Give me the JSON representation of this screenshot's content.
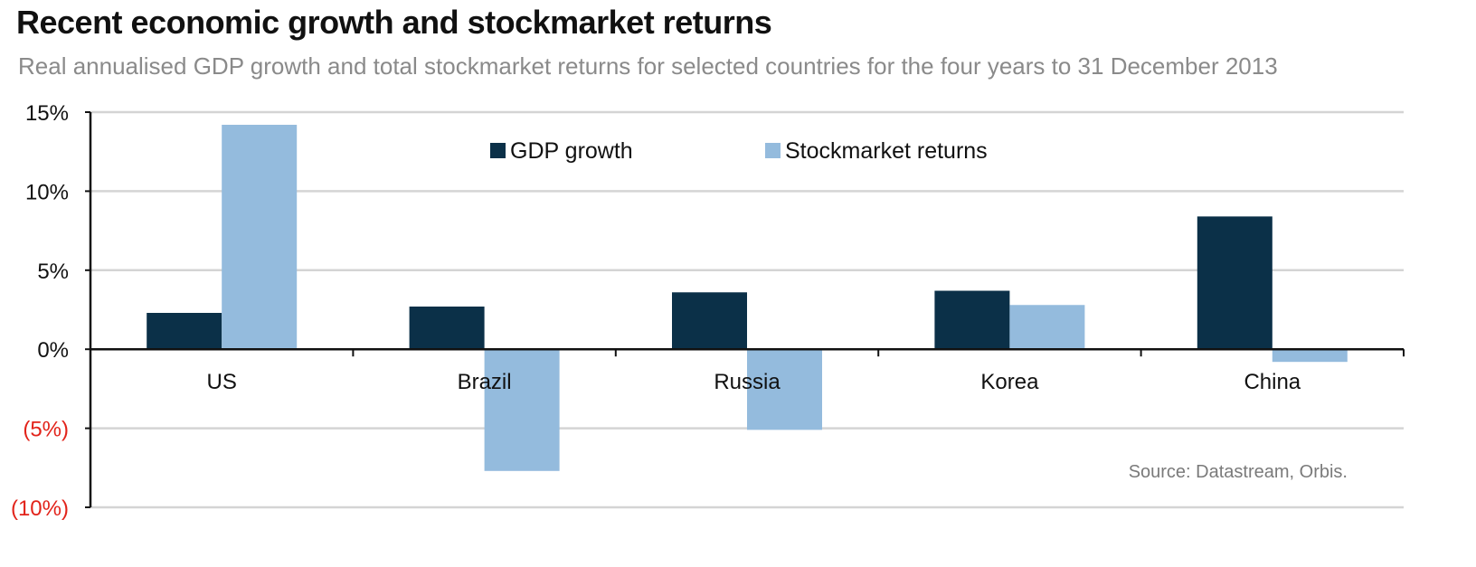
{
  "header": {
    "title": "Recent economic growth and stockmarket returns",
    "subtitle": "Real annualised GDP growth and total stockmarket returns for selected countries for the four years to 31 December 2013"
  },
  "source_note": "Source: Datastream, Orbis.",
  "colors": {
    "gdp": "#0b3048",
    "stock": "#94bbdd",
    "gridline": "#d4d4d4",
    "negative_tick": "#e2231a",
    "positive_tick": "#111111"
  },
  "chart_data": {
    "type": "bar",
    "title": "Recent economic growth and stockmarket returns",
    "subtitle": "Real annualised GDP growth and total stockmarket returns for selected countries for the four years to 31 December 2013",
    "categories": [
      "US",
      "Brazil",
      "Russia",
      "Korea",
      "China"
    ],
    "series": [
      {
        "name": "GDP growth",
        "values": [
          2.3,
          2.7,
          3.6,
          3.7,
          8.4
        ]
      },
      {
        "name": "Stockmarket returns",
        "values": [
          14.2,
          -7.7,
          -5.1,
          2.8,
          -0.8
        ]
      }
    ],
    "ylim": [
      -10,
      15
    ],
    "yticks": [
      15,
      10,
      5,
      0,
      -5,
      -10
    ],
    "ytick_labels": [
      "15%",
      "10%",
      "5%",
      "0%",
      "(5%)",
      "(10%)"
    ],
    "legend_position": "top-center",
    "grid": true
  }
}
